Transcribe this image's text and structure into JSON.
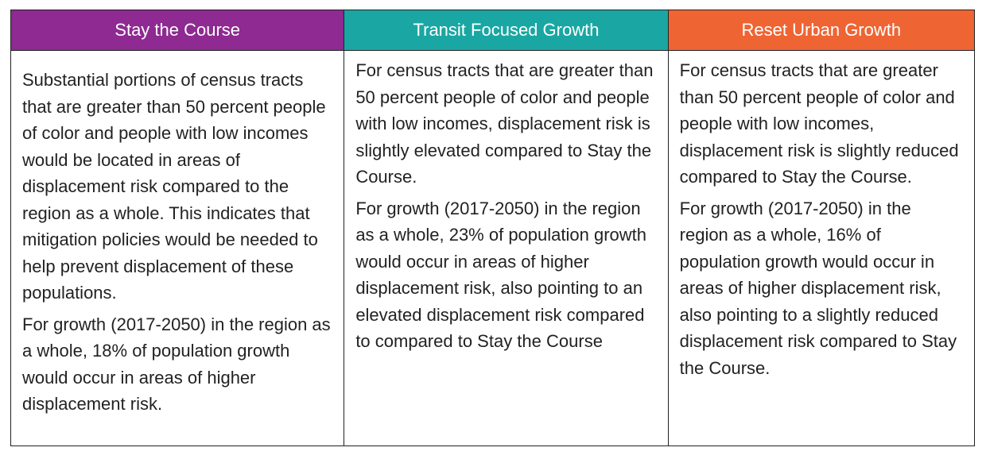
{
  "table": {
    "columns": [
      {
        "title": "Stay the Course",
        "color": "#8e2a91",
        "paragraphs": [
          "Substantial portions of census tracts that are greater than 50 percent people of color and people with low incomes would be located in areas of displacement risk compared to the region as a whole. This indicates that mitigation policies would be needed to help prevent displacement of these populations.",
          "For growth (2017-2050) in the region as a whole, 18% of population growth would occur in areas of higher displacement risk."
        ]
      },
      {
        "title": "Transit Focused Growth",
        "color": "#1aa7a3",
        "paragraphs": [
          "For census tracts that are greater than 50 percent people of color and people with low incomes, displacement risk is slightly elevated compared to Stay the Course.",
          "For growth (2017-2050) in the region as a whole, 23% of population growth would occur in areas of higher displacement risk, also pointing to an elevated displacement risk compared to compared to Stay the Course"
        ]
      },
      {
        "title": "Reset Urban Growth",
        "color": "#ef6433",
        "paragraphs": [
          "For census tracts that are greater than 50 percent people of color and people with low incomes, displacement risk is slightly reduced compared to Stay the Course.",
          "For growth (2017-2050) in the region as a whole, 16% of population growth would occur in areas of higher displacement risk, also pointing to a slightly reduced displacement risk compared to Stay the Course."
        ]
      }
    ]
  }
}
